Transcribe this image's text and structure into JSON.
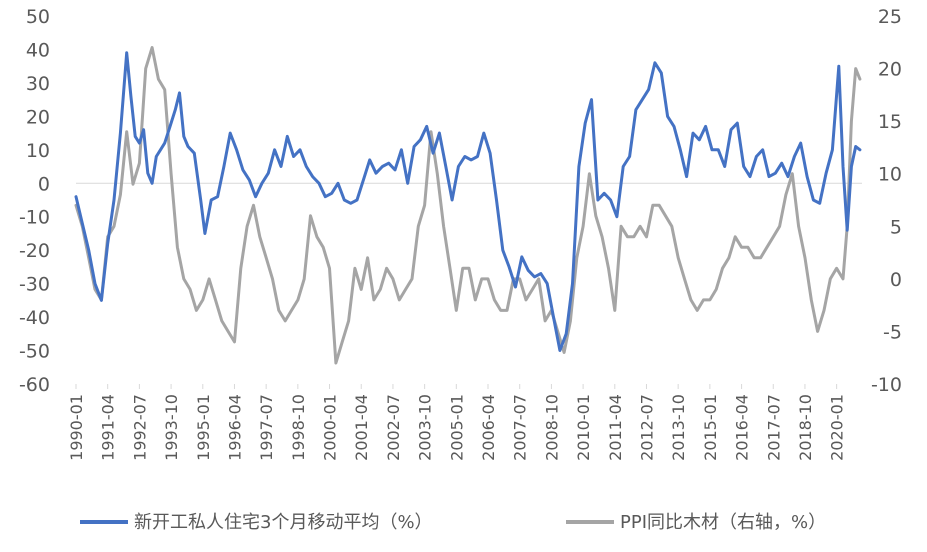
{
  "chart_data": {
    "type": "line",
    "title": "",
    "xlabel": "",
    "ylabel": "",
    "ylim": [
      -60,
      50
    ],
    "y2lim": [
      -10,
      25
    ],
    "yticks": [
      50,
      40,
      30,
      20,
      10,
      0,
      -10,
      -20,
      -30,
      -40,
      -50,
      -60
    ],
    "y2ticks": [
      25,
      20,
      15,
      10,
      5,
      0,
      -5,
      -10
    ],
    "x_tick_labels": [
      "1990-01",
      "1991-04",
      "1992-07",
      "1993-10",
      "1995-01",
      "1996-04",
      "1997-07",
      "1998-10",
      "2000-01",
      "2001-04",
      "2002-07",
      "2003-10",
      "2005-01",
      "2006-04",
      "2007-07",
      "2008-10",
      "2010-01",
      "2011-04",
      "2012-07",
      "2013-10",
      "2015-01",
      "2016-04",
      "2017-07",
      "2018-10",
      "2020-01"
    ],
    "grid": false,
    "legend_position": "bottom",
    "series": [
      {
        "name": "新开工私人住宅3个月移动平均（%）",
        "axis": "left",
        "color": "#4472C4",
        "points": [
          [
            "1990-01",
            -4
          ],
          [
            "1990-04",
            -12
          ],
          [
            "1990-07",
            -20
          ],
          [
            "1990-10",
            -30
          ],
          [
            "1991-01",
            -35
          ],
          [
            "1991-04",
            -18
          ],
          [
            "1991-07",
            -5
          ],
          [
            "1991-10",
            15
          ],
          [
            "1992-01",
            39
          ],
          [
            "1992-03",
            26
          ],
          [
            "1992-05",
            14
          ],
          [
            "1992-07",
            12
          ],
          [
            "1992-09",
            16
          ],
          [
            "1992-11",
            3
          ],
          [
            "1993-01",
            0
          ],
          [
            "1993-03",
            8
          ],
          [
            "1993-05",
            10
          ],
          [
            "1993-07",
            12
          ],
          [
            "1993-09",
            16
          ],
          [
            "1993-12",
            22
          ],
          [
            "1994-02",
            27
          ],
          [
            "1994-04",
            14
          ],
          [
            "1994-06",
            11
          ],
          [
            "1994-09",
            9
          ],
          [
            "1994-12",
            -5
          ],
          [
            "1995-02",
            -15
          ],
          [
            "1995-05",
            -5
          ],
          [
            "1995-08",
            -4
          ],
          [
            "1995-11",
            5
          ],
          [
            "1996-02",
            15
          ],
          [
            "1996-05",
            10
          ],
          [
            "1996-08",
            4
          ],
          [
            "1996-11",
            1
          ],
          [
            "1997-02",
            -4
          ],
          [
            "1997-05",
            0
          ],
          [
            "1997-08",
            3
          ],
          [
            "1997-11",
            10
          ],
          [
            "1998-02",
            5
          ],
          [
            "1998-05",
            14
          ],
          [
            "1998-08",
            8
          ],
          [
            "1998-11",
            10
          ],
          [
            "1999-02",
            5
          ],
          [
            "1999-05",
            2
          ],
          [
            "1999-08",
            0
          ],
          [
            "1999-11",
            -4
          ],
          [
            "2000-02",
            -3
          ],
          [
            "2000-05",
            0
          ],
          [
            "2000-08",
            -5
          ],
          [
            "2000-11",
            -6
          ],
          [
            "2001-02",
            -5
          ],
          [
            "2001-05",
            1
          ],
          [
            "2001-08",
            7
          ],
          [
            "2001-11",
            3
          ],
          [
            "2002-02",
            5
          ],
          [
            "2002-05",
            6
          ],
          [
            "2002-08",
            4
          ],
          [
            "2002-11",
            10
          ],
          [
            "2003-02",
            0
          ],
          [
            "2003-05",
            11
          ],
          [
            "2003-08",
            13
          ],
          [
            "2003-11",
            17
          ],
          [
            "2004-02",
            9
          ],
          [
            "2004-05",
            15
          ],
          [
            "2004-08",
            5
          ],
          [
            "2004-11",
            -5
          ],
          [
            "2005-02",
            5
          ],
          [
            "2005-05",
            8
          ],
          [
            "2005-08",
            7
          ],
          [
            "2005-11",
            8
          ],
          [
            "2006-02",
            15
          ],
          [
            "2006-05",
            9
          ],
          [
            "2006-08",
            -5
          ],
          [
            "2006-11",
            -20
          ],
          [
            "2007-02",
            -25
          ],
          [
            "2007-05",
            -31
          ],
          [
            "2007-08",
            -22
          ],
          [
            "2007-11",
            -26
          ],
          [
            "2008-02",
            -28
          ],
          [
            "2008-05",
            -27
          ],
          [
            "2008-08",
            -30
          ],
          [
            "2008-11",
            -40
          ],
          [
            "2009-02",
            -50
          ],
          [
            "2009-05",
            -45
          ],
          [
            "2009-08",
            -30
          ],
          [
            "2009-11",
            5
          ],
          [
            "2010-02",
            18
          ],
          [
            "2010-05",
            25
          ],
          [
            "2010-08",
            -5
          ],
          [
            "2010-11",
            -3
          ],
          [
            "2011-02",
            -5
          ],
          [
            "2011-05",
            -10
          ],
          [
            "2011-08",
            5
          ],
          [
            "2011-11",
            8
          ],
          [
            "2012-02",
            22
          ],
          [
            "2012-05",
            25
          ],
          [
            "2012-08",
            28
          ],
          [
            "2012-11",
            36
          ],
          [
            "2013-02",
            33
          ],
          [
            "2013-05",
            20
          ],
          [
            "2013-08",
            17
          ],
          [
            "2013-11",
            10
          ],
          [
            "2014-02",
            2
          ],
          [
            "2014-05",
            15
          ],
          [
            "2014-08",
            13
          ],
          [
            "2014-11",
            17
          ],
          [
            "2015-02",
            10
          ],
          [
            "2015-05",
            10
          ],
          [
            "2015-08",
            5
          ],
          [
            "2015-11",
            16
          ],
          [
            "2016-02",
            18
          ],
          [
            "2016-05",
            5
          ],
          [
            "2016-08",
            2
          ],
          [
            "2016-11",
            8
          ],
          [
            "2017-02",
            10
          ],
          [
            "2017-05",
            2
          ],
          [
            "2017-08",
            3
          ],
          [
            "2017-11",
            6
          ],
          [
            "2018-02",
            2
          ],
          [
            "2018-05",
            8
          ],
          [
            "2018-08",
            12
          ],
          [
            "2018-11",
            2
          ],
          [
            "2019-02",
            -5
          ],
          [
            "2019-05",
            -6
          ],
          [
            "2019-08",
            3
          ],
          [
            "2019-11",
            10
          ],
          [
            "2020-02",
            35
          ],
          [
            "2020-04",
            5
          ],
          [
            "2020-06",
            -14
          ],
          [
            "2020-08",
            5
          ],
          [
            "2020-10",
            11
          ],
          [
            "2020-12",
            10
          ]
        ]
      },
      {
        "name": "PPI同比木材（右轴，%）",
        "axis": "right",
        "color": "#A5A5A5",
        "points": [
          [
            "1990-01",
            7
          ],
          [
            "1990-04",
            5
          ],
          [
            "1990-07",
            2
          ],
          [
            "1990-10",
            -1
          ],
          [
            "1991-01",
            -2
          ],
          [
            "1991-04",
            4
          ],
          [
            "1991-07",
            5
          ],
          [
            "1991-10",
            8
          ],
          [
            "1992-01",
            14
          ],
          [
            "1992-04",
            9
          ],
          [
            "1992-07",
            11
          ],
          [
            "1992-10",
            20
          ],
          [
            "1993-01",
            22
          ],
          [
            "1993-04",
            19
          ],
          [
            "1993-07",
            18
          ],
          [
            "1993-10",
            10
          ],
          [
            "1994-01",
            3
          ],
          [
            "1994-04",
            0
          ],
          [
            "1994-07",
            -1
          ],
          [
            "1994-10",
            -3
          ],
          [
            "1995-01",
            -2
          ],
          [
            "1995-04",
            0
          ],
          [
            "1995-07",
            -2
          ],
          [
            "1995-10",
            -4
          ],
          [
            "1996-01",
            -5
          ],
          [
            "1996-04",
            -6
          ],
          [
            "1996-07",
            1
          ],
          [
            "1996-10",
            5
          ],
          [
            "1997-01",
            7
          ],
          [
            "1997-04",
            4
          ],
          [
            "1997-07",
            2
          ],
          [
            "1997-10",
            0
          ],
          [
            "1998-01",
            -3
          ],
          [
            "1998-04",
            -4
          ],
          [
            "1998-07",
            -3
          ],
          [
            "1998-10",
            -2
          ],
          [
            "1999-01",
            0
          ],
          [
            "1999-04",
            6
          ],
          [
            "1999-07",
            4
          ],
          [
            "1999-10",
            3
          ],
          [
            "2000-01",
            1
          ],
          [
            "2000-04",
            -8
          ],
          [
            "2000-07",
            -6
          ],
          [
            "2000-10",
            -4
          ],
          [
            "2001-01",
            1
          ],
          [
            "2001-04",
            -1
          ],
          [
            "2001-07",
            2
          ],
          [
            "2001-10",
            -2
          ],
          [
            "2002-01",
            -1
          ],
          [
            "2002-04",
            1
          ],
          [
            "2002-07",
            0
          ],
          [
            "2002-10",
            -2
          ],
          [
            "2003-01",
            -1
          ],
          [
            "2003-04",
            0
          ],
          [
            "2003-07",
            5
          ],
          [
            "2003-10",
            7
          ],
          [
            "2004-01",
            14
          ],
          [
            "2004-04",
            10
          ],
          [
            "2004-07",
            5
          ],
          [
            "2004-10",
            1
          ],
          [
            "2005-01",
            -3
          ],
          [
            "2005-04",
            1
          ],
          [
            "2005-07",
            1
          ],
          [
            "2005-10",
            -2
          ],
          [
            "2006-01",
            0
          ],
          [
            "2006-04",
            0
          ],
          [
            "2006-07",
            -2
          ],
          [
            "2006-10",
            -3
          ],
          [
            "2007-01",
            -3
          ],
          [
            "2007-04",
            0
          ],
          [
            "2007-07",
            0
          ],
          [
            "2007-10",
            -2
          ],
          [
            "2008-01",
            -1
          ],
          [
            "2008-04",
            0
          ],
          [
            "2008-07",
            -4
          ],
          [
            "2008-10",
            -3
          ],
          [
            "2009-01",
            -5
          ],
          [
            "2009-04",
            -7
          ],
          [
            "2009-07",
            -4
          ],
          [
            "2009-10",
            2
          ],
          [
            "2010-01",
            5
          ],
          [
            "2010-04",
            10
          ],
          [
            "2010-07",
            6
          ],
          [
            "2010-10",
            4
          ],
          [
            "2011-01",
            1
          ],
          [
            "2011-04",
            -3
          ],
          [
            "2011-07",
            5
          ],
          [
            "2011-10",
            4
          ],
          [
            "2012-01",
            4
          ],
          [
            "2012-04",
            5
          ],
          [
            "2012-07",
            4
          ],
          [
            "2012-10",
            7
          ],
          [
            "2013-01",
            7
          ],
          [
            "2013-04",
            6
          ],
          [
            "2013-07",
            5
          ],
          [
            "2013-10",
            2
          ],
          [
            "2014-01",
            0
          ],
          [
            "2014-04",
            -2
          ],
          [
            "2014-07",
            -3
          ],
          [
            "2014-10",
            -2
          ],
          [
            "2015-01",
            -2
          ],
          [
            "2015-04",
            -1
          ],
          [
            "2015-07",
            1
          ],
          [
            "2015-10",
            2
          ],
          [
            "2016-01",
            4
          ],
          [
            "2016-04",
            3
          ],
          [
            "2016-07",
            3
          ],
          [
            "2016-10",
            2
          ],
          [
            "2017-01",
            2
          ],
          [
            "2017-04",
            3
          ],
          [
            "2017-07",
            4
          ],
          [
            "2017-10",
            5
          ],
          [
            "2018-01",
            8
          ],
          [
            "2018-04",
            10
          ],
          [
            "2018-07",
            5
          ],
          [
            "2018-10",
            2
          ],
          [
            "2019-01",
            -2
          ],
          [
            "2019-04",
            -5
          ],
          [
            "2019-07",
            -3
          ],
          [
            "2019-10",
            0
          ],
          [
            "2020-01",
            1
          ],
          [
            "2020-04",
            0
          ],
          [
            "2020-06",
            5
          ],
          [
            "2020-08",
            15
          ],
          [
            "2020-10",
            20
          ],
          [
            "2020-12",
            19
          ]
        ]
      }
    ]
  }
}
